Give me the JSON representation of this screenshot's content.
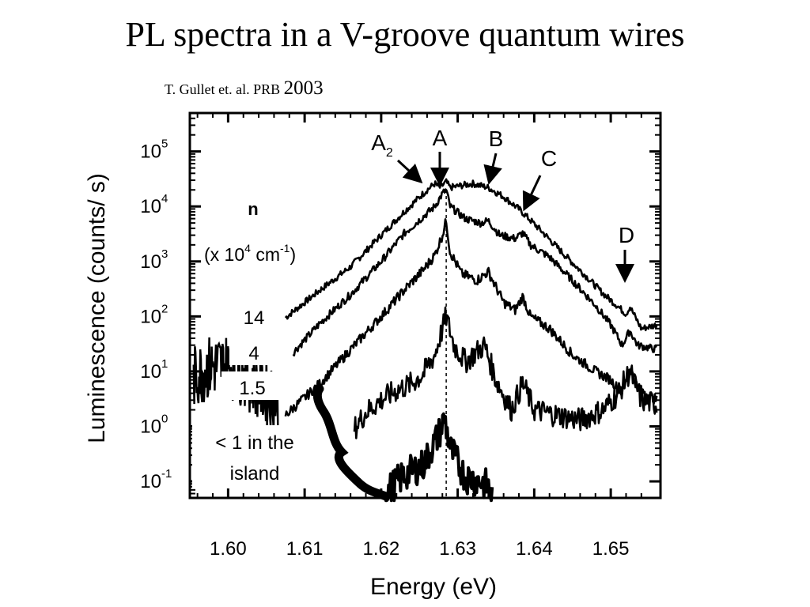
{
  "slide": {
    "title": "PL spectra in a V-groove quantum wires",
    "citation": "T. Gullet et. al. PRB",
    "citation_year": "2003"
  },
  "chart_data": {
    "type": "line",
    "title": "",
    "xlabel": "Energy (eV)",
    "ylabel": "Luminescence (counts/ s)",
    "xlim": [
      1.595,
      1.6565
    ],
    "y_scale": "log",
    "ylim": [
      0.05,
      500000
    ],
    "x_ticks": [
      "1.60",
      "1.61",
      "1.62",
      "1.63",
      "1.64",
      "1.65"
    ],
    "y_ticks": [
      {
        "exp": -1,
        "label_base": "10",
        "label_exp": "-1"
      },
      {
        "exp": 0,
        "label_base": "10",
        "label_exp": "0"
      },
      {
        "exp": 1,
        "label_base": "10",
        "label_exp": "1"
      },
      {
        "exp": 2,
        "label_base": "10",
        "label_exp": "2"
      },
      {
        "exp": 3,
        "label_base": "10",
        "label_exp": "3"
      },
      {
        "exp": 4,
        "label_base": "10",
        "label_exp": "4"
      },
      {
        "exp": 5,
        "label_base": "10",
        "label_exp": "5"
      }
    ],
    "legend_header": "n",
    "legend_units": {
      "pre": "(x 10",
      "exp1": "4",
      "mid": " cm",
      "exp2": "-1",
      "post": ")"
    },
    "series": [
      {
        "name": "14",
        "x": [
          1.6075,
          1.612,
          1.616,
          1.62,
          1.623,
          1.626,
          1.627,
          1.6277,
          1.6285,
          1.629,
          1.6305,
          1.632,
          1.634,
          1.636,
          1.638,
          1.641,
          1.644,
          1.647,
          1.649,
          1.651,
          1.652,
          1.6525,
          1.654,
          1.656
        ],
        "y": [
          95,
          300,
          800,
          3000,
          8000,
          20000,
          26000,
          22000,
          28000,
          22000,
          24000,
          26000,
          22000,
          15000,
          9000,
          3500,
          1300,
          500,
          260,
          150,
          110,
          150,
          60,
          70
        ]
      },
      {
        "name": "4",
        "x": [
          1.6085,
          1.612,
          1.616,
          1.62,
          1.623,
          1.6255,
          1.627,
          1.628,
          1.6285,
          1.629,
          1.631,
          1.633,
          1.634,
          1.6355,
          1.6375,
          1.6385,
          1.6395,
          1.642,
          1.645,
          1.648,
          1.65,
          1.6515,
          1.6525,
          1.6535,
          1.656
        ],
        "y": [
          22,
          75,
          250,
          1000,
          3200,
          6500,
          10000,
          17000,
          20000,
          10000,
          6000,
          5000,
          5500,
          3000,
          2600,
          3300,
          2000,
          1200,
          450,
          160,
          70,
          30,
          55,
          30,
          25
        ]
      },
      {
        "name": "1.5",
        "x": [
          1.6075,
          1.612,
          1.616,
          1.62,
          1.623,
          1.6255,
          1.627,
          1.628,
          1.6285,
          1.629,
          1.6305,
          1.6325,
          1.634,
          1.636,
          1.6375,
          1.6385,
          1.6395,
          1.642,
          1.645,
          1.648,
          1.65,
          1.6515,
          1.6525,
          1.6535,
          1.656
        ],
        "y": [
          1.6,
          6,
          25,
          100,
          300,
          700,
          1300,
          3000,
          5500,
          1500,
          600,
          450,
          650,
          180,
          130,
          230,
          100,
          60,
          20,
          10,
          7,
          4,
          12,
          5,
          3
        ]
      },
      {
        "name": "< 1 in the island",
        "x": [
          1.6165,
          1.618,
          1.62,
          1.622,
          1.624,
          1.6255,
          1.627,
          1.6285,
          1.6295,
          1.631,
          1.6335,
          1.635,
          1.637,
          1.6385,
          1.64,
          1.643,
          1.646,
          1.649,
          1.651,
          1.6525,
          1.654,
          1.656
        ],
        "y": [
          0.9,
          1.8,
          3,
          4.5,
          6,
          9,
          20,
          100,
          30,
          15,
          30,
          7,
          2,
          6,
          2,
          1.6,
          1.3,
          2,
          4,
          10,
          3,
          2.5
        ]
      },
      {
        "name": "",
        "x": [
          1.6205,
          1.623,
          1.6255,
          1.6275,
          1.6283,
          1.629,
          1.631,
          1.633,
          1.634,
          1.6345
        ],
        "y": [
          0.06,
          0.13,
          0.2,
          0.7,
          1.4,
          0.4,
          0.12,
          0.1,
          0.08,
          0.05
        ]
      }
    ],
    "annotations": [
      {
        "label": "A",
        "sub": "2",
        "x": 1.6265,
        "y": 26000
      },
      {
        "label": "A",
        "sub": "",
        "x": 1.6283,
        "y": 22000
      },
      {
        "label": "B",
        "sub": "",
        "x": 1.6345,
        "y": 23000
      },
      {
        "label": "C",
        "sub": "",
        "x": 1.6395,
        "y": 5000
      },
      {
        "label": "D",
        "sub": "",
        "x": 1.6525,
        "y": 110
      }
    ],
    "reference_line_x": 1.6285,
    "grid": false
  }
}
